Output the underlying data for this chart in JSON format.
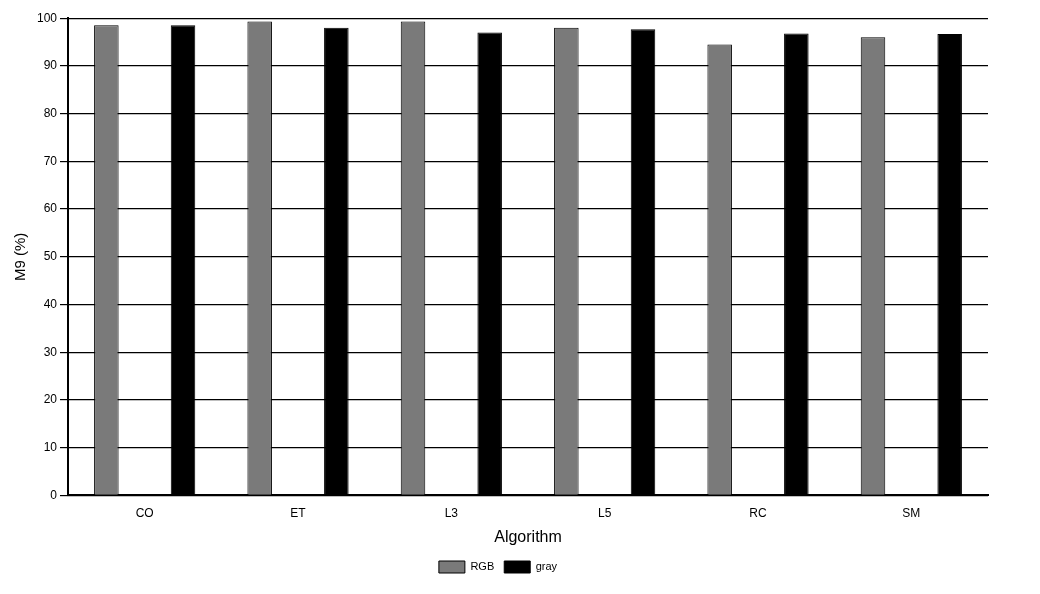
{
  "chart_data": {
    "type": "bar",
    "xlabel": "Algorithm",
    "ylabel": "M9 (%)",
    "categories": [
      "CO",
      "ET",
      "L3",
      "L5",
      "RC",
      "SM"
    ],
    "series": [
      {
        "name": "RGB",
        "color": "#7a7a7a",
        "values": [
          98.5,
          99.3,
          99.3,
          98,
          94.5,
          96
        ]
      },
      {
        "name": "gray",
        "color": "#000000",
        "values": [
          98.5,
          98,
          97,
          97.7,
          96.8,
          96.7
        ]
      }
    ],
    "ylim": [
      0,
      100
    ],
    "yticks": [
      0,
      10,
      20,
      30,
      40,
      50,
      60,
      70,
      80,
      90,
      100
    ],
    "grid": "y",
    "legend": "bottom"
  }
}
